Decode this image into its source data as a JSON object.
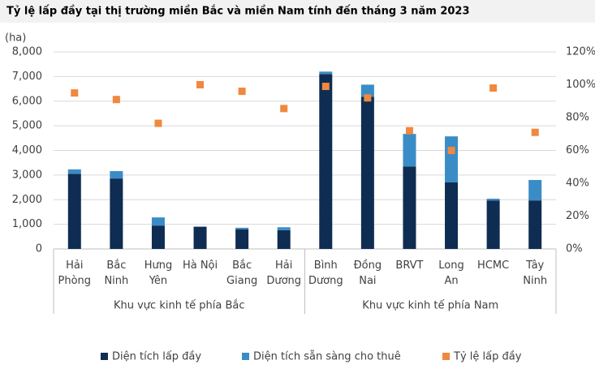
{
  "chart_data": {
    "type": "bar",
    "title": "Tỷ lệ lấp đầy tại thị trường miền Bắc và miền Nam tính đến tháng 3 năm 2023",
    "y_label": "(ha)",
    "groups": [
      {
        "label": "Khu vực kinh tế phía Bắc",
        "categories": [
          [
            "Hải",
            "Phòng"
          ],
          [
            "Bắc",
            "Ninh"
          ],
          [
            "Hưng",
            "Yên"
          ],
          [
            "Hà Nội"
          ],
          [
            "Bắc",
            "Giang"
          ],
          [
            "Hải",
            "Dương"
          ]
        ]
      },
      {
        "label": "Khu vực kinh tế phía Nam",
        "categories": [
          [
            "Bình",
            "Dương"
          ],
          [
            "Đồng",
            "Nai"
          ],
          [
            "BRVT"
          ],
          [
            "Long",
            "An"
          ],
          [
            "HCMC"
          ],
          [
            "Tây",
            "Ninh"
          ]
        ]
      }
    ],
    "series": [
      {
        "name": "Diện tích lấp đầy",
        "color": "#0f2d52",
        "values": [
          3050,
          2860,
          950,
          900,
          800,
          760,
          7100,
          6180,
          3350,
          2700,
          1970,
          1970
        ]
      },
      {
        "name": "Diện tích sẵn sàng cho thuê",
        "color": "#3a8cc6",
        "values": [
          180,
          300,
          330,
          10,
          60,
          120,
          100,
          490,
          1320,
          1870,
          70,
          830
        ]
      },
      {
        "name": "Tỷ lệ lấp đầy",
        "color": "#f0883e",
        "axis": "y2",
        "type": "scatter",
        "values": [
          95,
          91,
          76.5,
          100,
          96,
          85.5,
          99,
          92,
          72,
          60,
          98,
          71
        ]
      }
    ],
    "ylim": [
      0,
      8000
    ],
    "yticks": [
      0,
      {
        "value": 1000,
        "label": "1,000"
      },
      {
        "value": 2000,
        "label": "2,000"
      },
      {
        "value": 3000,
        "label": "3,000"
      },
      {
        "value": 4000,
        "label": "4,000"
      },
      {
        "value": 5000,
        "label": "5,000"
      },
      {
        "value": 6000,
        "label": "6,000"
      },
      {
        "value": 7000,
        "label": "7,000"
      },
      {
        "value": 8000,
        "label": "8,000"
      }
    ],
    "y2lim": [
      0,
      120
    ],
    "y2ticks": [
      {
        "value": 0,
        "label": "0%"
      },
      {
        "value": 20,
        "label": "20%"
      },
      {
        "value": 40,
        "label": "40%"
      },
      {
        "value": 60,
        "label": "60%"
      },
      {
        "value": 80,
        "label": "80%"
      },
      {
        "value": 100,
        "label": "100%"
      },
      {
        "value": 120,
        "label": "120%"
      }
    ],
    "grid": true
  }
}
